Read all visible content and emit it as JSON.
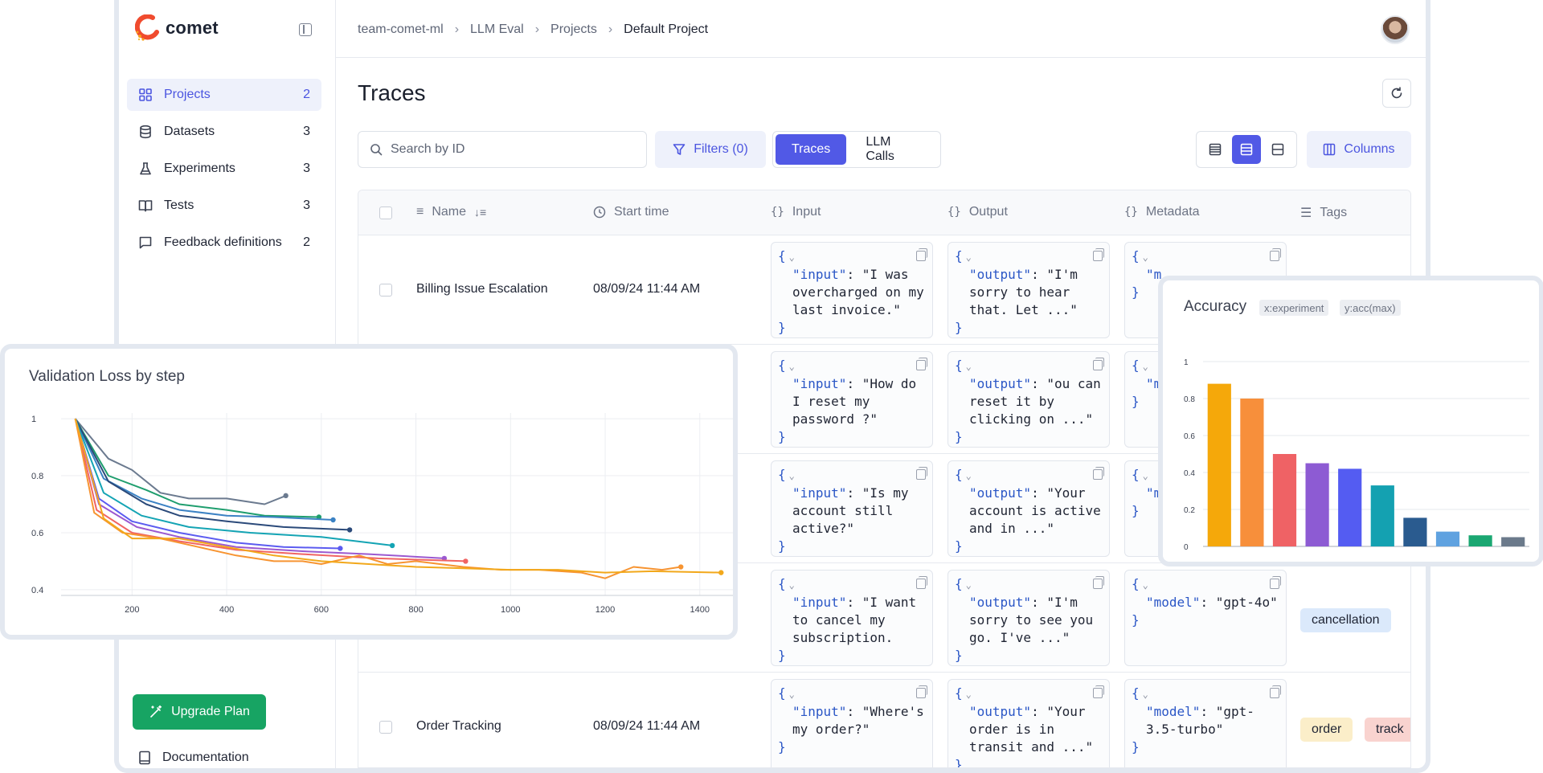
{
  "app": {
    "logo_text": "comet",
    "breadcrumbs": [
      "team-comet-ml",
      "LLM Eval",
      "Projects",
      "Default Project"
    ],
    "page_title": "Traces"
  },
  "sidebar": {
    "items": [
      {
        "label": "Projects",
        "count": "2",
        "icon": "grid-icon",
        "active": true
      },
      {
        "label": "Datasets",
        "count": "3",
        "icon": "database-icon"
      },
      {
        "label": "Experiments",
        "count": "3",
        "icon": "flask-icon"
      },
      {
        "label": "Tests",
        "count": "3",
        "icon": "book-icon"
      },
      {
        "label": "Feedback definitions",
        "count": "2",
        "icon": "message-icon"
      }
    ],
    "upgrade_label": "Upgrade Plan",
    "docs_label": "Documentation"
  },
  "toolbar": {
    "search_placeholder": "Search by ID",
    "filters_label": "Filters (0)",
    "segments": [
      "Traces",
      "LLM Calls"
    ],
    "active_segment": "Traces",
    "columns_label": "Columns"
  },
  "table": {
    "headers": {
      "name": "Name",
      "start_time": "Start time",
      "input": "Input",
      "output": "Output",
      "metadata": "Metadata",
      "tags": "Tags"
    },
    "rows": [
      {
        "name": "Billing Issue Escalation",
        "start_time": "08/09/24 11:44 AM",
        "input_key": "\"input\"",
        "input_val": ": \"I was overcharged on my last invoice.\"",
        "output_key": "\"output\"",
        "output_val": ": \"I'm sorry to hear that. Let ...\"",
        "meta_key": "\"m",
        "meta_val": "",
        "tags": []
      },
      {
        "name": "",
        "start_time": "",
        "input_key": "\"input\"",
        "input_val": ": \"How do I reset my password ?\"",
        "output_key": "\"output\"",
        "output_val": ": \"ou can reset it by clicking on ...\"",
        "meta_key": "\"m",
        "meta_val": "",
        "tags": []
      },
      {
        "name": "",
        "start_time": "",
        "input_key": "\"input\"",
        "input_val": ": \"Is my account still active?\"",
        "output_key": "\"output\"",
        "output_val": ": \"Your account is active and in ...\"",
        "meta_key": "\"m",
        "meta_val": "",
        "tags": []
      },
      {
        "name": "",
        "start_time": "",
        "input_key": "\"input\"",
        "input_val": ": \"I want to cancel my subscription.",
        "output_key": "\"output\"",
        "output_val": ": \"I'm sorry to see you go. I've ...\"",
        "meta_key": "\"model\"",
        "meta_val": ": \"gpt-4o\"",
        "tags": [
          {
            "label": "cancellation",
            "color": "#dbe9fb"
          }
        ]
      },
      {
        "name": "Order Tracking",
        "start_time": "08/09/24 11:44 AM",
        "input_key": "\"input\"",
        "input_val": ": \"Where's my order?\"",
        "output_key": "\"output\"",
        "output_val": ": \"Your order is in transit and ...\"",
        "meta_key": "\"model\"",
        "meta_val": ": \"gpt-3.5-turbo\"",
        "tags": [
          {
            "label": "order",
            "color": "#fbeec9"
          },
          {
            "label": "track",
            "color": "#f9d3cf"
          }
        ]
      }
    ]
  },
  "loss_chart": {
    "title": "Validation Loss by step",
    "chart_data": {
      "type": "line",
      "title": "Validation Loss by step",
      "xlabel": "",
      "ylabel": "",
      "xlim": [
        50,
        1470
      ],
      "ylim": [
        0.38,
        1.02
      ],
      "x_ticks": [
        200,
        400,
        600,
        800,
        1000,
        1200,
        1400
      ],
      "y_ticks": [
        0.4,
        0.6,
        0.8,
        1
      ],
      "series": [
        {
          "color": "#6b7a8f",
          "points": [
            [
              80,
              1
            ],
            [
              150,
              0.86
            ],
            [
              200,
              0.82
            ],
            [
              260,
              0.74
            ],
            [
              320,
              0.72
            ],
            [
              400,
              0.72
            ],
            [
              480,
              0.7
            ],
            [
              525,
              0.73
            ]
          ]
        },
        {
          "color": "#1f9e6e",
          "points": [
            [
              80,
              1
            ],
            [
              150,
              0.8
            ],
            [
              230,
              0.75
            ],
            [
              300,
              0.7
            ],
            [
              400,
              0.68
            ],
            [
              480,
              0.66
            ],
            [
              595,
              0.655
            ]
          ]
        },
        {
          "color": "#3b82c4",
          "points": [
            [
              80,
              1
            ],
            [
              140,
              0.79
            ],
            [
              220,
              0.72
            ],
            [
              300,
              0.68
            ],
            [
              400,
              0.66
            ],
            [
              500,
              0.655
            ],
            [
              625,
              0.645
            ]
          ]
        },
        {
          "color": "#2b4a7a",
          "points": [
            [
              80,
              1
            ],
            [
              150,
              0.78
            ],
            [
              230,
              0.7
            ],
            [
              300,
              0.66
            ],
            [
              400,
              0.64
            ],
            [
              520,
              0.62
            ],
            [
              660,
              0.61
            ]
          ]
        },
        {
          "color": "#14a4b4",
          "points": [
            [
              80,
              1
            ],
            [
              140,
              0.74
            ],
            [
              220,
              0.66
            ],
            [
              320,
              0.62
            ],
            [
              450,
              0.6
            ],
            [
              600,
              0.585
            ],
            [
              750,
              0.555
            ]
          ]
        },
        {
          "color": "#5b5bf0",
          "points": [
            [
              80,
              1
            ],
            [
              130,
              0.72
            ],
            [
              200,
              0.64
            ],
            [
              300,
              0.6
            ],
            [
              420,
              0.565
            ],
            [
              520,
              0.55
            ],
            [
              640,
              0.545
            ]
          ]
        },
        {
          "color": "#9b59d0",
          "points": [
            [
              80,
              1
            ],
            [
              130,
              0.7
            ],
            [
              210,
              0.62
            ],
            [
              300,
              0.585
            ],
            [
              420,
              0.55
            ],
            [
              560,
              0.535
            ],
            [
              700,
              0.525
            ],
            [
              860,
              0.51
            ]
          ]
        },
        {
          "color": "#f06463",
          "points": [
            [
              80,
              1
            ],
            [
              125,
              0.68
            ],
            [
              200,
              0.6
            ],
            [
              300,
              0.57
            ],
            [
              420,
              0.54
            ],
            [
              560,
              0.525
            ],
            [
              720,
              0.51
            ],
            [
              905,
              0.5
            ]
          ]
        },
        {
          "color": "#f79431",
          "points": [
            [
              80,
              1
            ],
            [
              120,
              0.67
            ],
            [
              180,
              0.6
            ],
            [
              260,
              0.58
            ],
            [
              340,
              0.55
            ],
            [
              420,
              0.52
            ],
            [
              500,
              0.5
            ],
            [
              560,
              0.5
            ],
            [
              600,
              0.49
            ],
            [
              680,
              0.52
            ],
            [
              740,
              0.49
            ],
            [
              800,
              0.5
            ],
            [
              900,
              0.48
            ],
            [
              980,
              0.47
            ],
            [
              1060,
              0.47
            ],
            [
              1150,
              0.46
            ],
            [
              1200,
              0.44
            ],
            [
              1260,
              0.48
            ],
            [
              1320,
              0.47
            ],
            [
              1360,
              0.48
            ]
          ]
        },
        {
          "color": "#f2a81b",
          "points": [
            [
              80,
              1
            ],
            [
              140,
              0.65
            ],
            [
              200,
              0.58
            ],
            [
              300,
              0.58
            ],
            [
              400,
              0.55
            ],
            [
              500,
              0.52
            ],
            [
              600,
              0.5
            ],
            [
              700,
              0.49
            ],
            [
              800,
              0.48
            ],
            [
              900,
              0.475
            ],
            [
              1000,
              0.47
            ],
            [
              1100,
              0.47
            ],
            [
              1200,
              0.46
            ],
            [
              1300,
              0.465
            ],
            [
              1445,
              0.46
            ]
          ]
        }
      ]
    }
  },
  "accuracy_chart": {
    "title": "Accuracy",
    "chips": [
      "x:experiment",
      "y:acc(max)"
    ],
    "chart_data": {
      "type": "bar",
      "title": "Accuracy",
      "xlabel": "experiment",
      "ylabel": "acc(max)",
      "ylim": [
        0,
        1
      ],
      "y_ticks": [
        0,
        0.2,
        0.4,
        0.6,
        0.8,
        1
      ],
      "values": [
        0.88,
        0.8,
        0.5,
        0.45,
        0.42,
        0.33,
        0.155,
        0.08,
        0.06,
        0.05
      ],
      "colors": [
        "#f5a80a",
        "#f78f3b",
        "#ef6265",
        "#8d5bd3",
        "#545cf2",
        "#14a1b1",
        "#2a5b8f",
        "#5fa2e0",
        "#1ba772",
        "#6b7a8b"
      ]
    }
  }
}
